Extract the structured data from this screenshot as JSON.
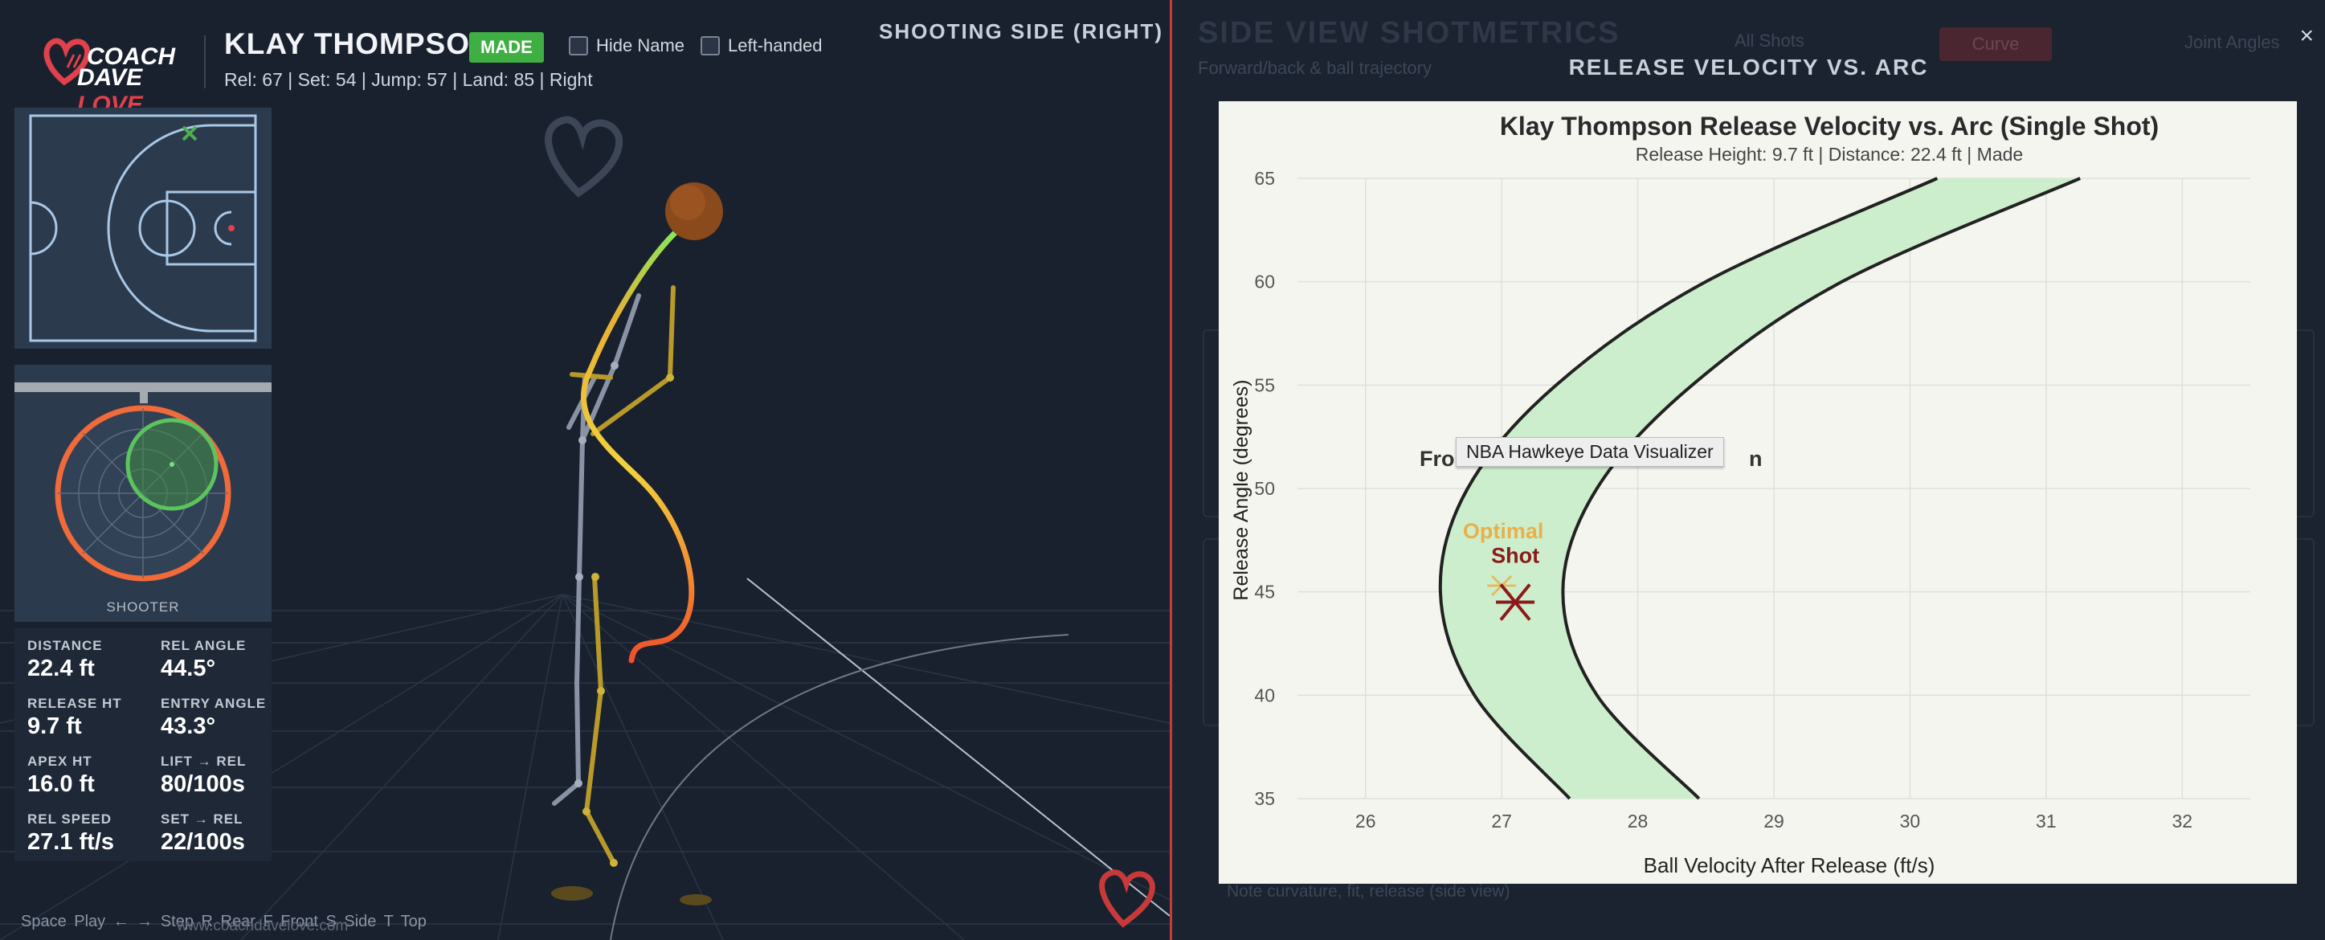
{
  "header": {
    "logo": {
      "line1": "COACH",
      "line2_a": "DAVE",
      "line2_b": "LOVE"
    },
    "player_name": "KLAY THOMPSON",
    "result_badge": "MADE",
    "hide_name_label": "Hide Name",
    "left_handed_label": "Left-handed",
    "stats_line": "Rel: 67 | Set: 54 | Jump: 57 | Land: 85 | Right",
    "view_title": "SHOOTING SIDE (RIGHT)"
  },
  "rim_view": {
    "label": "SHOOTER"
  },
  "metrics": [
    {
      "label": "DISTANCE",
      "value": "22.4 ft"
    },
    {
      "label": "REL ANGLE",
      "value": "44.5°"
    },
    {
      "label": "RELEASE HT",
      "value": "9.7 ft"
    },
    {
      "label": "ENTRY ANGLE",
      "value": "43.3°"
    },
    {
      "label": "APEX HT",
      "value": "16.0 ft"
    },
    {
      "label": "LIFT → REL",
      "value": "80/100s"
    },
    {
      "label": "REL SPEED",
      "value": "27.1 ft/s"
    },
    {
      "label": "SET → REL",
      "value": "22/100s"
    }
  ],
  "keyboard_hints": "Space Play   ←  →  Step   R  Rear   F  Front   S  Side   T  Top",
  "watermark_text": "www.coachdavelove.com",
  "background_panel": {
    "title": "SIDE VIEW SHOTMETRICS",
    "subtitle": "Forward/back & ball trajectory",
    "button1": "All Shots",
    "button2": "Curve",
    "button3": "Joint Angles",
    "footer": "Note curvature, fit, release (side view)",
    "section_label_left": "Fro",
    "section_label_right": "n"
  },
  "modal": {
    "title": "RELEASE VELOCITY VS. ARC",
    "close_label": "×",
    "tooltip": "NBA Hawkeye Data Visualizer"
  },
  "chart_data": {
    "type": "line",
    "title": "Klay Thompson Release Velocity vs. Arc (Single Shot)",
    "subtitle": "Release Height: 9.7 ft  |  Distance: 22.4 ft  |  Made",
    "xlabel": "Ball Velocity After Release (ft/s)",
    "ylabel": "Release Angle (degrees)",
    "xlim": [
      25.5,
      32.5
    ],
    "ylim": [
      35,
      65
    ],
    "xticks": [
      26,
      27,
      28,
      29,
      30,
      31,
      32
    ],
    "yticks": [
      35,
      40,
      45,
      50,
      55,
      60,
      65
    ],
    "grid": true,
    "band_color": "#cdeecd",
    "series": [
      {
        "values": [
          [
            27.5,
            35
          ],
          [
            26.8,
            40
          ],
          [
            26.55,
            45
          ],
          [
            26.75,
            50
          ],
          [
            27.4,
            55
          ],
          [
            28.5,
            60
          ],
          [
            30.2,
            65
          ]
        ]
      },
      {
        "values": [
          [
            28.45,
            35
          ],
          [
            27.7,
            40
          ],
          [
            27.45,
            45
          ],
          [
            27.7,
            50
          ],
          [
            28.4,
            55
          ],
          [
            29.5,
            60
          ],
          [
            31.25,
            65
          ]
        ]
      }
    ],
    "annotations": [
      {
        "text": "Optimal",
        "x": 27.0,
        "y": 47.6,
        "color": "#e8b04a",
        "marker_x": 27.0,
        "marker_y": 45.3
      },
      {
        "text": "Shot",
        "x": 27.1,
        "y": 46.4,
        "color": "#8b1a1a",
        "marker_x": 27.1,
        "marker_y": 44.5
      }
    ]
  }
}
